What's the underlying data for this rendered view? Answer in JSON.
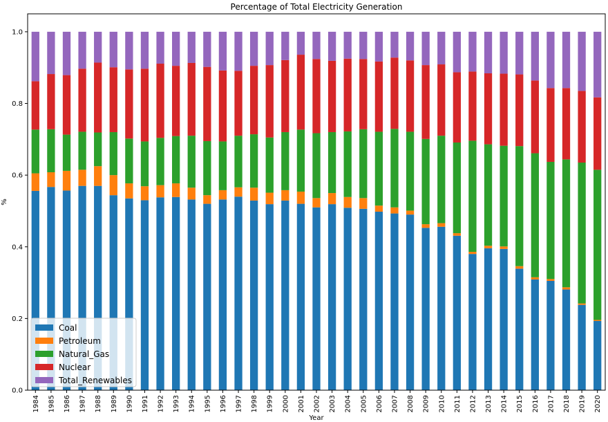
{
  "chart_data": {
    "type": "bar",
    "stacked": true,
    "title": "Percentage of Total Electricity Generation",
    "xlabel": "Year",
    "ylabel": "%",
    "ylim": [
      0,
      1.05
    ],
    "yticks": [
      "0.0",
      "0.2",
      "0.4",
      "0.6",
      "0.8",
      "1.0"
    ],
    "legend_position": "lower-left",
    "grid": false,
    "categories": [
      "1984",
      "1985",
      "1986",
      "1987",
      "1988",
      "1989",
      "1990",
      "1991",
      "1992",
      "1993",
      "1994",
      "1995",
      "1996",
      "1997",
      "1998",
      "1999",
      "2000",
      "2001",
      "2002",
      "2003",
      "2004",
      "2005",
      "2006",
      "2007",
      "2008",
      "2009",
      "2010",
      "2011",
      "2012",
      "2013",
      "2014",
      "2015",
      "2016",
      "2017",
      "2018",
      "2019",
      "2020"
    ],
    "series": [
      {
        "name": "Coal",
        "color": "#1f77b4",
        "values": [
          0.556,
          0.567,
          0.557,
          0.57,
          0.57,
          0.544,
          0.535,
          0.53,
          0.538,
          0.539,
          0.532,
          0.52,
          0.532,
          0.54,
          0.529,
          0.519,
          0.529,
          0.52,
          0.51,
          0.519,
          0.509,
          0.506,
          0.498,
          0.493,
          0.49,
          0.453,
          0.456,
          0.431,
          0.38,
          0.396,
          0.394,
          0.339,
          0.309,
          0.305,
          0.281,
          0.238,
          0.193
        ]
      },
      {
        "name": "Petroleum",
        "color": "#ff7f0e",
        "values": [
          0.049,
          0.041,
          0.055,
          0.045,
          0.055,
          0.056,
          0.042,
          0.039,
          0.034,
          0.038,
          0.033,
          0.024,
          0.026,
          0.026,
          0.036,
          0.032,
          0.029,
          0.034,
          0.026,
          0.031,
          0.03,
          0.03,
          0.017,
          0.017,
          0.011,
          0.01,
          0.01,
          0.007,
          0.006,
          0.007,
          0.007,
          0.007,
          0.006,
          0.005,
          0.006,
          0.004,
          0.003
        ]
      },
      {
        "name": "Natural_Gas",
        "color": "#2ca02c",
        "values": [
          0.122,
          0.12,
          0.101,
          0.106,
          0.094,
          0.12,
          0.125,
          0.125,
          0.132,
          0.132,
          0.145,
          0.151,
          0.136,
          0.144,
          0.149,
          0.154,
          0.162,
          0.173,
          0.181,
          0.17,
          0.183,
          0.192,
          0.206,
          0.219,
          0.22,
          0.238,
          0.244,
          0.253,
          0.31,
          0.283,
          0.281,
          0.335,
          0.346,
          0.327,
          0.357,
          0.393,
          0.419
        ]
      },
      {
        "name": "Nuclear",
        "color": "#d62728",
        "values": [
          0.135,
          0.154,
          0.166,
          0.176,
          0.195,
          0.181,
          0.193,
          0.203,
          0.207,
          0.196,
          0.203,
          0.207,
          0.198,
          0.181,
          0.191,
          0.202,
          0.201,
          0.209,
          0.207,
          0.199,
          0.203,
          0.196,
          0.196,
          0.199,
          0.199,
          0.206,
          0.199,
          0.196,
          0.193,
          0.198,
          0.201,
          0.2,
          0.203,
          0.206,
          0.199,
          0.2,
          0.202
        ]
      },
      {
        "name": "Total_Renewables",
        "color": "#9467bd",
        "values": [
          0.138,
          0.118,
          0.121,
          0.103,
          0.086,
          0.099,
          0.105,
          0.103,
          0.089,
          0.095,
          0.087,
          0.098,
          0.108,
          0.109,
          0.095,
          0.093,
          0.079,
          0.064,
          0.076,
          0.081,
          0.075,
          0.076,
          0.083,
          0.072,
          0.08,
          0.093,
          0.091,
          0.113,
          0.111,
          0.116,
          0.117,
          0.119,
          0.136,
          0.157,
          0.157,
          0.165,
          0.183
        ]
      }
    ]
  }
}
